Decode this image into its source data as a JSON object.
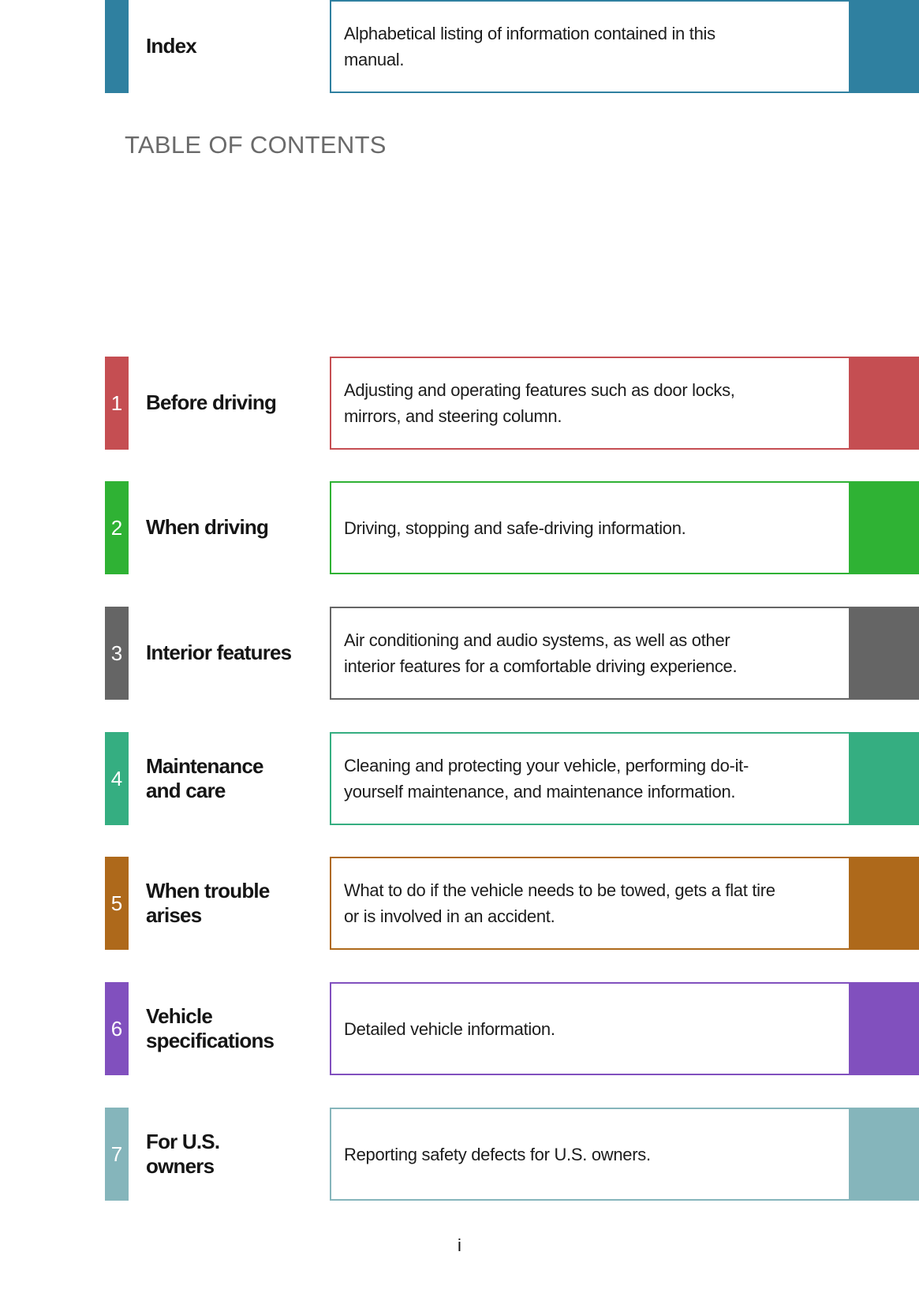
{
  "page": {
    "heading": "TABLE OF CONTENTS",
    "footer_page_number": "i"
  },
  "sections": [
    {
      "number": "1",
      "color": "#c54e52",
      "title_lines": [
        "Before driving"
      ],
      "desc_lines": [
        "Adjusting and operating features such as door locks,",
        "mirrors, and steering column."
      ]
    },
    {
      "number": "2",
      "color": "#2fb234",
      "title_lines": [
        "When driving"
      ],
      "desc_lines": [
        "Driving, stopping and safe-driving information."
      ]
    },
    {
      "number": "3",
      "color": "#656565",
      "title_lines": [
        "Interior features"
      ],
      "desc_lines": [
        "Air conditioning and audio systems, as well as other",
        "interior features for a comfortable driving experience."
      ]
    },
    {
      "number": "4",
      "color": "#35ae81",
      "title_lines": [
        "Maintenance",
        "and care"
      ],
      "desc_lines": [
        "Cleaning and protecting your vehicle, performing do-it-",
        "yourself maintenance, and maintenance information."
      ]
    },
    {
      "number": "5",
      "color": "#ae691b",
      "title_lines": [
        "When trouble",
        "arises"
      ],
      "desc_lines": [
        "What to do if the vehicle needs to be towed, gets a flat tire",
        "or is involved in an accident."
      ]
    },
    {
      "number": "6",
      "color": "#8150be",
      "title_lines": [
        "Vehicle",
        "specifications"
      ],
      "desc_lines": [
        "Detailed vehicle information."
      ]
    },
    {
      "number": "7",
      "color": "#85b5bb",
      "title_lines": [
        "For U.S.",
        "owners"
      ],
      "desc_lines": [
        "Reporting safety defects for U.S. owners."
      ]
    },
    {
      "number": "",
      "color": "#2f80a0",
      "title_lines": [
        "Index"
      ],
      "desc_lines": [
        "Alphabetical listing of information contained in this",
        "manual."
      ]
    }
  ]
}
